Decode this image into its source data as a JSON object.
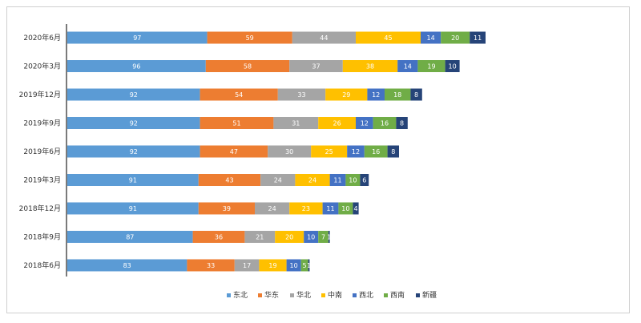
{
  "chart_data": {
    "type": "bar",
    "orientation": "horizontal",
    "stacked": true,
    "categories": [
      "2020年6月",
      "2020年3月",
      "2019年12月",
      "2019年9月",
      "2019年6月",
      "2019年3月",
      "2018年12月",
      "2018年9月",
      "2018年6月"
    ],
    "series": [
      {
        "name": "东北",
        "color": "#5b9bd5",
        "values": [
          97,
          96,
          92,
          92,
          92,
          91,
          91,
          87,
          83
        ]
      },
      {
        "name": "华东",
        "color": "#ed7d31",
        "values": [
          59,
          58,
          54,
          51,
          47,
          43,
          39,
          36,
          33
        ]
      },
      {
        "name": "华北",
        "color": "#a5a5a5",
        "values": [
          44,
          37,
          33,
          31,
          30,
          24,
          24,
          21,
          17
        ]
      },
      {
        "name": "中南",
        "color": "#ffc000",
        "values": [
          45,
          38,
          29,
          26,
          25,
          24,
          23,
          20,
          19
        ]
      },
      {
        "name": "西北",
        "color": "#4472c4",
        "values": [
          14,
          14,
          12,
          12,
          12,
          11,
          11,
          10,
          10
        ]
      },
      {
        "name": "西南",
        "color": "#70ad47",
        "values": [
          20,
          19,
          18,
          16,
          16,
          10,
          10,
          7,
          5
        ]
      },
      {
        "name": "新疆",
        "color": "#264478",
        "values": [
          11,
          10,
          8,
          8,
          8,
          6,
          4,
          1,
          1
        ]
      }
    ],
    "xlim": [
      0,
      400
    ],
    "grid": false,
    "legend": "bottom"
  }
}
